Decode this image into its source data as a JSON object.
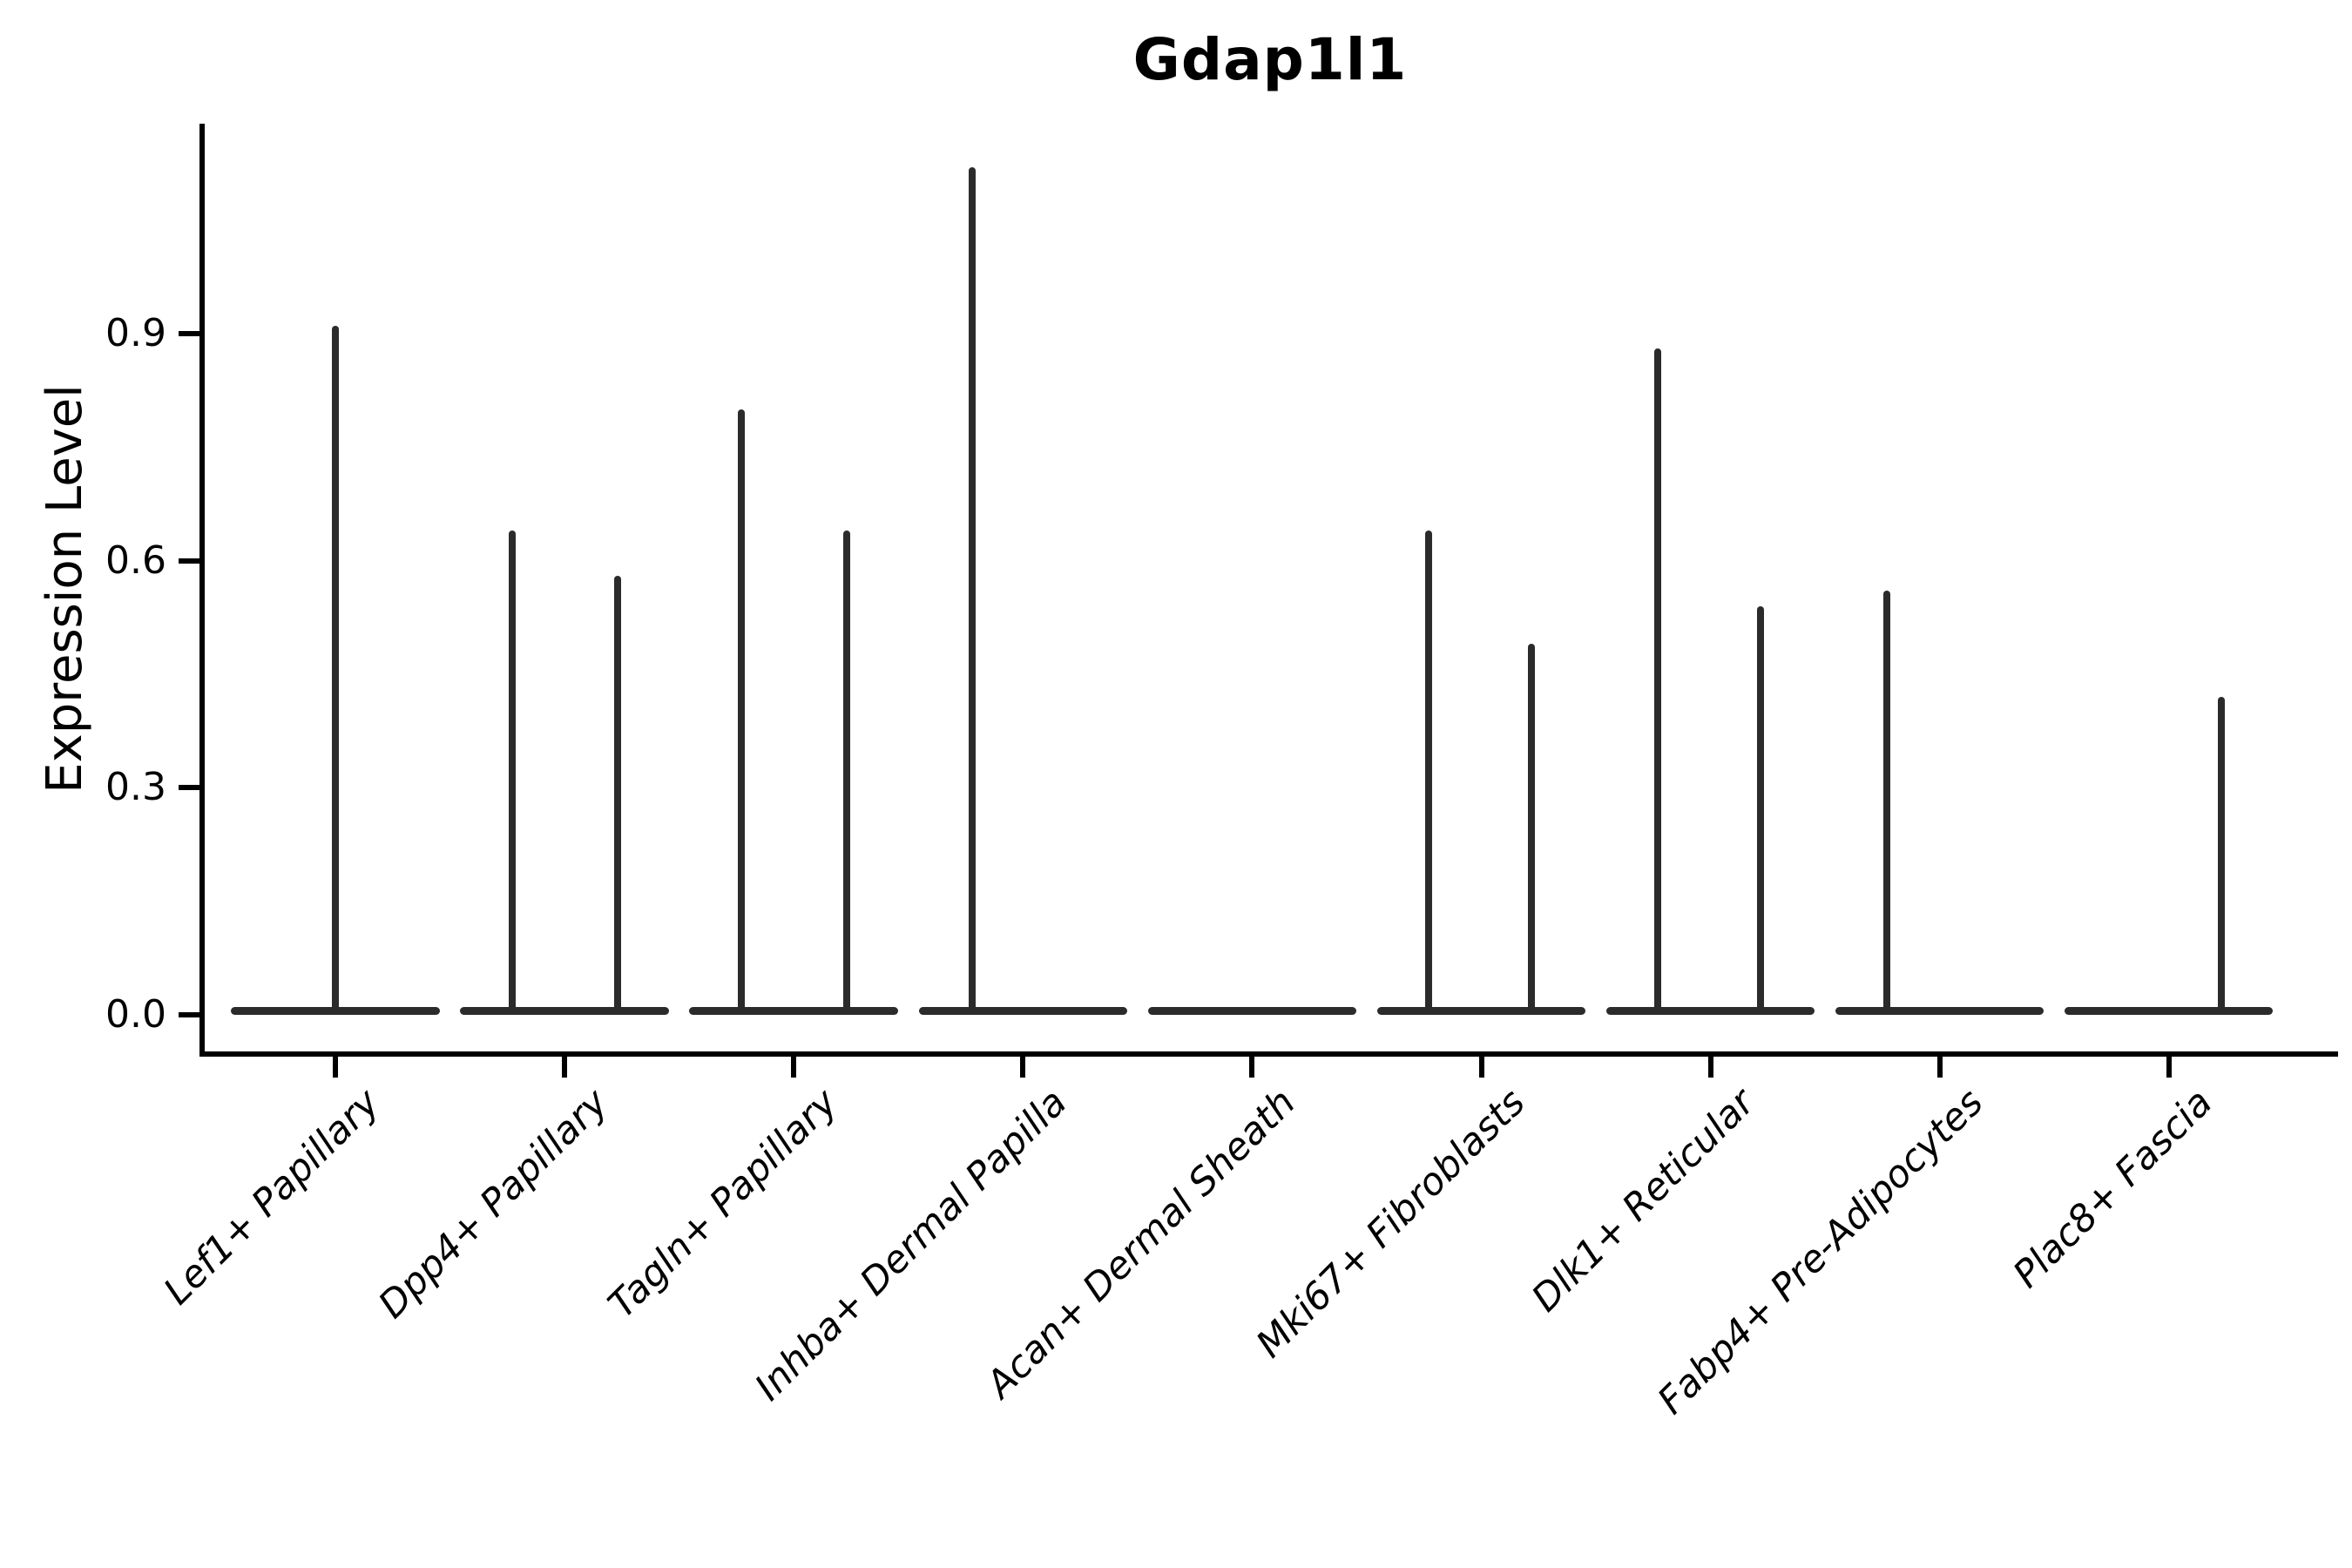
{
  "title": "Gdap1l1",
  "chart_data": {
    "type": "violin",
    "title": "Gdap1l1",
    "xlabel": "",
    "ylabel": "Expression Level",
    "grid": false,
    "legend": null,
    "ylim": [
      -0.06,
      1.18
    ],
    "ytick_values": [
      0.0,
      0.3,
      0.6,
      0.9
    ],
    "ytick_labels": [
      "0.0",
      "0.3",
      "0.6",
      "0.9"
    ],
    "categories": [
      "Lef1+ Papillary",
      "Dpp4+ Papillary",
      "Tagln+ Papillary",
      "Inhba+ Dermal Papilla",
      "Acan+ Dermal Sheath",
      "Mki67+ Fibroblasts",
      "Dlk1+ Reticular",
      "Fabp4+ Pre-Adipocytes",
      "Plac8+ Fascia"
    ],
    "violin_body": {
      "baseline_value": 0.0,
      "half_width_category_units": 0.455,
      "note": "each violin collapses to a flat line at expression 0 with thin density spikes"
    },
    "violins": [
      {
        "category": "Lef1+ Papillary",
        "spikes": [
          {
            "pos_offset": 0.0,
            "max_expression": 0.91
          }
        ]
      },
      {
        "category": "Dpp4+ Papillary",
        "spikes": [
          {
            "pos_offset": -0.23,
            "max_expression": 0.64
          },
          {
            "pos_offset": 0.23,
            "max_expression": 0.58
          }
        ]
      },
      {
        "category": "Tagln+ Papillary",
        "spikes": [
          {
            "pos_offset": -0.23,
            "max_expression": 0.8
          },
          {
            "pos_offset": 0.23,
            "max_expression": 0.64
          }
        ]
      },
      {
        "category": "Inhba+ Dermal Papilla",
        "spikes": [
          {
            "pos_offset": -0.22,
            "max_expression": 1.12
          }
        ]
      },
      {
        "category": "Acan+ Dermal Sheath",
        "spikes": []
      },
      {
        "category": "Mki67+ Fibroblasts",
        "spikes": [
          {
            "pos_offset": -0.23,
            "max_expression": 0.64
          },
          {
            "pos_offset": 0.22,
            "max_expression": 0.49
          }
        ]
      },
      {
        "category": "Dlk1+ Reticular",
        "spikes": [
          {
            "pos_offset": -0.23,
            "max_expression": 0.88
          },
          {
            "pos_offset": 0.22,
            "max_expression": 0.54
          }
        ]
      },
      {
        "category": "Fabp4+ Pre-Adipocytes",
        "spikes": [
          {
            "pos_offset": -0.23,
            "max_expression": 0.56
          }
        ]
      },
      {
        "category": "Plac8+ Fascia",
        "spikes": [
          {
            "pos_offset": 0.23,
            "max_expression": 0.42
          }
        ]
      }
    ],
    "colors": {
      "line": "#2b2b2b",
      "axis": "#000000",
      "background": "#ffffff"
    }
  }
}
